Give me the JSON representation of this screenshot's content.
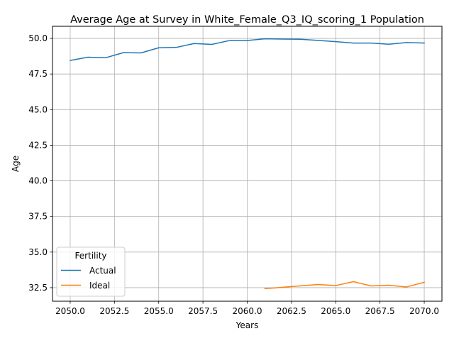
{
  "chart_data": {
    "type": "line",
    "title": "Average Age at Survey in White_Female_Q3_IQ_scoring_1 Population",
    "xlabel": "Years",
    "ylabel": "Age",
    "xlim": [
      2049,
      2071
    ],
    "ylim": [
      31.55,
      50.85
    ],
    "xticks": [
      2050.0,
      2052.5,
      2055.0,
      2057.5,
      2060.0,
      2062.5,
      2065.0,
      2067.5,
      2070.0
    ],
    "xtick_labels": [
      "2050.0",
      "2052.5",
      "2055.0",
      "2057.5",
      "2060.0",
      "2062.5",
      "2065.0",
      "2067.5",
      "2070.0"
    ],
    "yticks": [
      32.5,
      35.0,
      37.5,
      40.0,
      42.5,
      45.0,
      47.5,
      50.0
    ],
    "ytick_labels": [
      "32.5",
      "35.0",
      "37.5",
      "40.0",
      "42.5",
      "45.0",
      "47.5",
      "50.0"
    ],
    "grid": true,
    "legend": {
      "title": "Fertility",
      "location": "lower-left"
    },
    "series": [
      {
        "name": "Actual",
        "color": "#1f77b4",
        "x": [
          2050,
          2051,
          2052,
          2053,
          2054,
          2055,
          2056,
          2057,
          2058,
          2059,
          2060,
          2061,
          2062,
          2063,
          2064,
          2065,
          2066,
          2067,
          2068,
          2069,
          2070
        ],
        "values": [
          48.45,
          48.68,
          48.64,
          49.0,
          48.98,
          49.34,
          49.37,
          49.64,
          49.58,
          49.85,
          49.85,
          49.97,
          49.95,
          49.94,
          49.86,
          49.77,
          49.67,
          49.67,
          49.59,
          49.71,
          49.67
        ]
      },
      {
        "name": "Ideal",
        "color": "#ff7f0e",
        "x": [
          2061,
          2062,
          2063,
          2064,
          2065,
          2066,
          2067,
          2068,
          2069,
          2070
        ],
        "values": [
          32.43,
          32.53,
          32.63,
          32.72,
          32.65,
          32.92,
          32.62,
          32.67,
          32.55,
          32.88
        ]
      }
    ]
  }
}
